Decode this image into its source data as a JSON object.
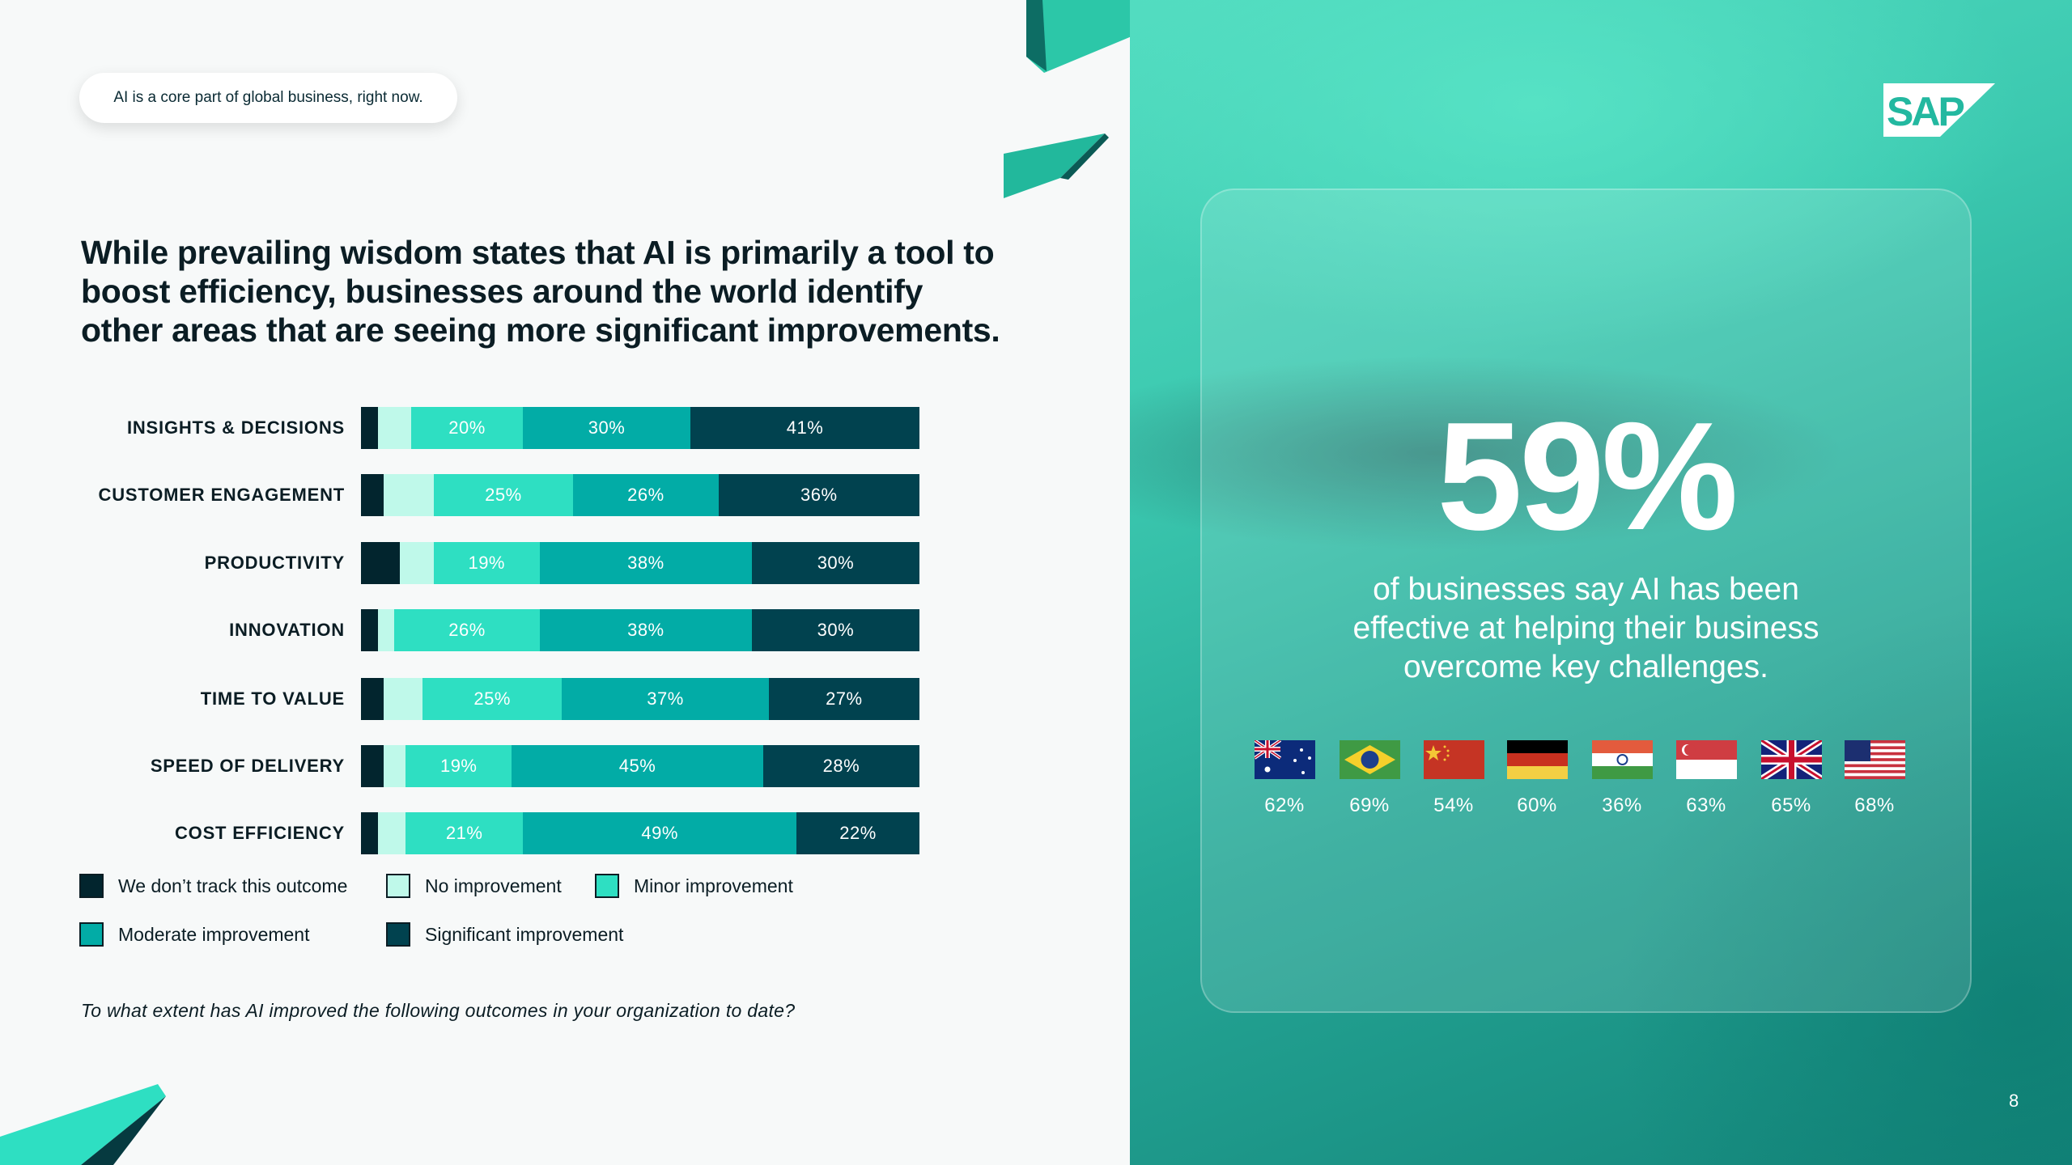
{
  "pill": "AI is a core part of global business, right now.",
  "title": "While prevailing wisdom states that AI is primarily a tool to boost efficiency, businesses around the world identify other areas that are seeing more significant improvements.",
  "chart_data": {
    "type": "bar",
    "stacked": true,
    "orientation": "horizontal",
    "categories": [
      "INSIGHTS & DECISIONS",
      "CUSTOMER ENGAGEMENT",
      "PRODUCTIVITY",
      "INNOVATION",
      "TIME TO VALUE",
      "SPEED OF DELIVERY",
      "COST EFFICIENCY"
    ],
    "series": [
      {
        "name": "We don’t track this outcome",
        "color": "#02252e",
        "values": [
          3,
          4,
          7,
          3,
          4,
          4,
          3
        ],
        "labeled": false
      },
      {
        "name": "No improvement",
        "color": "#bff9ea",
        "values": [
          6,
          9,
          6,
          3,
          7,
          4,
          5
        ],
        "labeled": false
      },
      {
        "name": "Minor improvement",
        "color": "#2edfc2",
        "values": [
          20,
          25,
          19,
          26,
          25,
          19,
          21
        ],
        "labeled": true
      },
      {
        "name": "Moderate improvement",
        "color": "#02aca6",
        "values": [
          30,
          26,
          38,
          38,
          37,
          45,
          49
        ],
        "labeled": true
      },
      {
        "name": "Significant improvement",
        "color": "#01424f",
        "values": [
          41,
          36,
          30,
          30,
          27,
          28,
          22
        ],
        "labeled": true
      }
    ],
    "xlim": [
      0,
      100
    ]
  },
  "footnote": "To what extent has AI improved the following outcomes in your organization to date?",
  "stat": {
    "value": "59%",
    "lines": [
      "of businesses say AI has been",
      "effective at helping their business",
      "overcome key challenges."
    ]
  },
  "countries": [
    {
      "flag": "australia-flag",
      "value": "62%"
    },
    {
      "flag": "brazil-flag",
      "value": "69%"
    },
    {
      "flag": "china-flag",
      "value": "54%"
    },
    {
      "flag": "germany-flag",
      "value": "60%"
    },
    {
      "flag": "india-flag",
      "value": "36%"
    },
    {
      "flag": "singapore-flag",
      "value": "63%"
    },
    {
      "flag": "uk-flag",
      "value": "65%"
    },
    {
      "flag": "usa-flag",
      "value": "68%"
    }
  ],
  "logo": "SAP",
  "page_number": "8"
}
